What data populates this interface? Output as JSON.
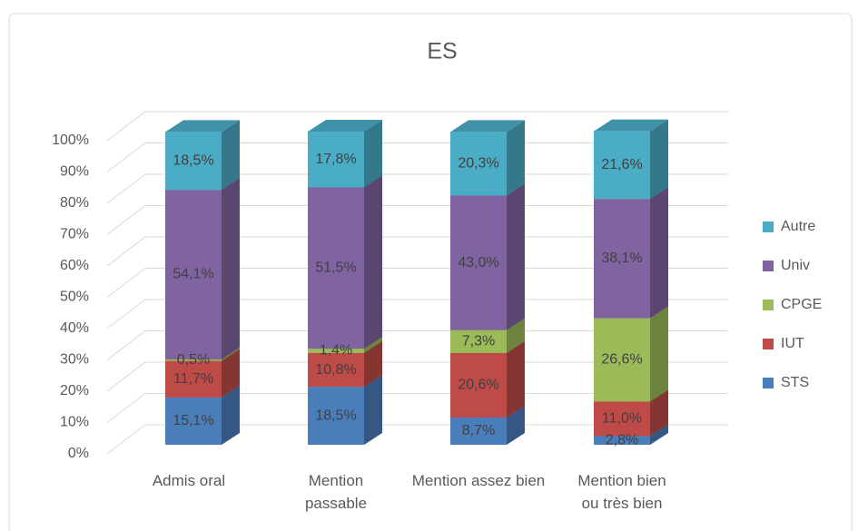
{
  "chart_data": {
    "type": "bar3d_stacked",
    "title": "ES",
    "categories": [
      "Admis oral",
      "Mention passable",
      "Mention assez bien",
      "Mention bien ou très bien"
    ],
    "series": [
      {
        "name": "STS",
        "color": "#4a7ebb",
        "values": [
          15.1,
          18.5,
          8.7,
          2.8
        ],
        "value_labels": [
          "15,1%",
          "18,5%",
          "8,7%",
          "2,8%"
        ]
      },
      {
        "name": "IUT",
        "color": "#be4b48",
        "values": [
          11.7,
          10.8,
          20.6,
          11.0
        ],
        "value_labels": [
          "11,7%",
          "10,8%",
          "20,6%",
          "11,0%"
        ]
      },
      {
        "name": "CPGE",
        "color": "#9bbb59",
        "values": [
          0.5,
          1.4,
          7.3,
          26.6
        ],
        "value_labels": [
          "0,5%",
          "1,4%",
          "7,3%",
          "26,6%"
        ]
      },
      {
        "name": "Univ",
        "color": "#8064a2",
        "values": [
          54.1,
          51.5,
          43.0,
          38.1
        ],
        "value_labels": [
          "54,1%",
          "51,5%",
          "43,0%",
          "38,1%"
        ]
      },
      {
        "name": "Autre",
        "color": "#4bacc6",
        "values": [
          18.5,
          17.8,
          20.3,
          21.6
        ],
        "value_labels": [
          "18,5%",
          "17,8%",
          "20,3%",
          "21,6%"
        ]
      }
    ],
    "ylim": [
      0,
      100
    ],
    "yticks": [
      {
        "value": 0,
        "label": "0%"
      },
      {
        "value": 10,
        "label": "10%"
      },
      {
        "value": 20,
        "label": "20%"
      },
      {
        "value": 30,
        "label": "30%"
      },
      {
        "value": 40,
        "label": "40%"
      },
      {
        "value": 50,
        "label": "50%"
      },
      {
        "value": 60,
        "label": "60%"
      },
      {
        "value": 70,
        "label": "70%"
      },
      {
        "value": 80,
        "label": "80%"
      },
      {
        "value": 90,
        "label": "90%"
      },
      {
        "value": 100,
        "label": "100%"
      }
    ],
    "grid": true,
    "legend": "right"
  }
}
